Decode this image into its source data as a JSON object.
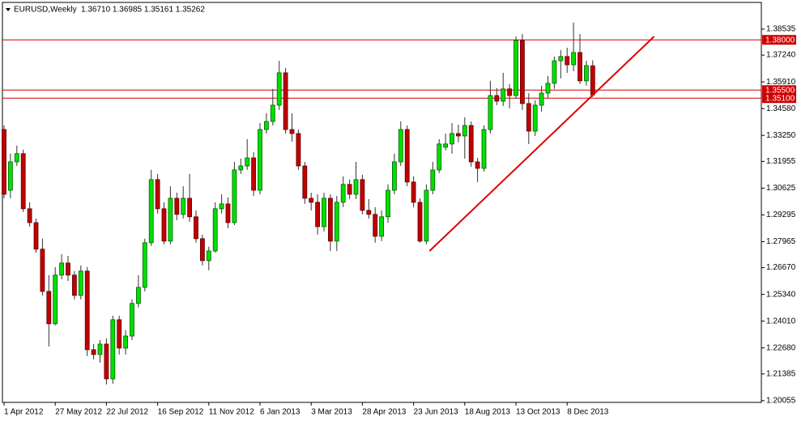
{
  "chart_data": {
    "type": "candlestick",
    "title": "EURUSD,Weekly",
    "subtitle": "1.36710 1.36985 1.35161 1.35262",
    "categories": [
      "1 Apr 2012",
      null,
      null,
      null,
      null,
      null,
      null,
      null,
      "27 May 2012",
      null,
      null,
      null,
      null,
      null,
      null,
      null,
      "22 Jul 2012",
      null,
      null,
      null,
      null,
      null,
      null,
      null,
      "16 Sep 2012",
      null,
      null,
      null,
      null,
      null,
      null,
      null,
      "11 Nov 2012",
      null,
      null,
      null,
      null,
      null,
      null,
      null,
      "6 Jan 2013",
      null,
      null,
      null,
      null,
      null,
      null,
      null,
      "3 Mar 2013",
      null,
      null,
      null,
      null,
      null,
      null,
      null,
      "28 Apr 2013",
      null,
      null,
      null,
      null,
      null,
      null,
      null,
      "23 Jun 2013",
      null,
      null,
      null,
      null,
      null,
      null,
      null,
      "18 Aug 2013",
      null,
      null,
      null,
      null,
      null,
      null,
      null,
      "13 Oct 2013",
      null,
      null,
      null,
      null,
      null,
      null,
      null,
      "8 Dec 2013",
      null,
      null,
      null,
      null
    ],
    "open": [
      1.3354,
      1.3052,
      1.3193,
      1.3234,
      1.296,
      1.2891,
      1.2759,
      1.2549,
      1.2388,
      1.263,
      1.269,
      1.263,
      1.2529,
      1.265,
      1.2259,
      1.2235,
      1.2287,
      1.2114,
      1.2408,
      1.2267,
      1.2327,
      1.2489,
      1.2569,
      1.2791,
      1.3105,
      1.296,
      1.2799,
      1.3012,
      1.2932,
      1.3012,
      1.292,
      1.2811,
      1.2702,
      1.275,
      1.296,
      1.2984,
      1.2891,
      1.3153,
      1.3173,
      1.3213,
      1.3052,
      1.3354,
      1.3394,
      1.3475,
      1.3636,
      1.3354,
      1.3334,
      1.3173,
      1.3012,
      1.2992,
      1.2871,
      1.3012,
      1.2799,
      1.2992,
      1.3081,
      1.3032,
      1.3105,
      1.2952,
      1.2932,
      1.2823,
      1.292,
      1.3052,
      1.3193,
      1.3354,
      1.3093,
      1.2992,
      1.2799,
      1.3052,
      1.3153,
      1.3266,
      1.3282,
      1.3334,
      1.3322,
      1.3374,
      1.3193,
      1.3161,
      1.3354,
      1.3523,
      1.3495,
      1.3556,
      1.3523,
      1.3797,
      1.3483,
      1.3346,
      1.3475,
      1.3535,
      1.3584,
      1.3696,
      1.3717,
      1.3676,
      1.3737,
      1.3596,
      1.3671
    ],
    "high": [
      1.3374,
      1.3234,
      1.3274,
      1.3254,
      1.2992,
      1.2911,
      1.2811,
      1.263,
      1.267,
      1.2734,
      1.2726,
      1.265,
      1.2678,
      1.267,
      1.2287,
      1.2307,
      1.2315,
      1.2428,
      1.2428,
      1.2356,
      1.2509,
      1.263,
      1.2811,
      1.3153,
      1.3133,
      1.2992,
      1.3072,
      1.304,
      1.3072,
      1.3133,
      1.2952,
      1.2831,
      1.2771,
      1.2992,
      1.3032,
      1.3016,
      1.3193,
      1.3209,
      1.3306,
      1.3242,
      1.3386,
      1.3435,
      1.3556,
      1.3696,
      1.366,
      1.3435,
      1.3354,
      1.3193,
      1.304,
      1.3032,
      1.304,
      1.3032,
      1.3024,
      1.3121,
      1.3105,
      1.3193,
      1.3129,
      1.3008,
      1.2968,
      1.2952,
      1.3081,
      1.3234,
      1.3394,
      1.3374,
      1.3121,
      1.3012,
      1.3081,
      1.3193,
      1.3306,
      1.3334,
      1.3386,
      1.3378,
      1.3415,
      1.3394,
      1.3213,
      1.3374,
      1.3596,
      1.356,
      1.3636,
      1.358,
      1.3817,
      1.3829,
      1.3535,
      1.3499,
      1.3572,
      1.362,
      1.3717,
      1.3749,
      1.3761,
      1.3886,
      1.3829,
      1.3696,
      1.36985
    ],
    "low": [
      1.3012,
      1.3012,
      1.3173,
      1.2944,
      1.2871,
      1.2742,
      1.2529,
      1.2275,
      1.238,
      1.2609,
      1.2601,
      1.2509,
      1.2509,
      1.2227,
      1.2211,
      1.2195,
      1.2086,
      1.209,
      1.2235,
      1.2235,
      1.2307,
      1.2469,
      1.2549,
      1.2775,
      1.2936,
      1.2783,
      1.2783,
      1.2903,
      1.2911,
      1.2895,
      1.2791,
      1.2678,
      1.2654,
      1.2742,
      1.2936,
      1.2863,
      1.2879,
      1.3133,
      1.3153,
      1.3024,
      1.3032,
      1.3334,
      1.3374,
      1.3451,
      1.3334,
      1.3294,
      1.3153,
      1.2984,
      1.2952,
      1.2831,
      1.2847,
      1.275,
      1.275,
      1.2968,
      1.3008,
      1.3008,
      1.2932,
      1.2911,
      1.2791,
      1.2799,
      1.2891,
      1.3032,
      1.3173,
      1.3072,
      1.2968,
      1.2791,
      1.2783,
      1.3032,
      1.3137,
      1.325,
      1.3234,
      1.329,
      1.3209,
      1.3169,
      1.3093,
      1.3145,
      1.3334,
      1.3475,
      1.3471,
      1.3459,
      1.3507,
      1.3451,
      1.3282,
      1.3322,
      1.3443,
      1.3511,
      1.3556,
      1.3608,
      1.3636,
      1.3644,
      1.358,
      1.3572,
      1.35161
    ],
    "close": [
      1.3032,
      1.3193,
      1.3234,
      1.296,
      1.2891,
      1.2759,
      1.2549,
      1.2388,
      1.263,
      1.269,
      1.263,
      1.2529,
      1.265,
      1.2259,
      1.2235,
      1.2287,
      1.2114,
      1.2408,
      1.2267,
      1.2327,
      1.2489,
      1.2569,
      1.2791,
      1.3105,
      1.296,
      1.2799,
      1.3012,
      1.2932,
      1.3012,
      1.292,
      1.2811,
      1.2702,
      1.275,
      1.296,
      1.2984,
      1.2891,
      1.3153,
      1.3173,
      1.3213,
      1.3052,
      1.3354,
      1.3394,
      1.3475,
      1.3636,
      1.3354,
      1.3334,
      1.3173,
      1.3012,
      1.2992,
      1.2871,
      1.3012,
      1.2799,
      1.2992,
      1.3081,
      1.3032,
      1.3105,
      1.2952,
      1.2932,
      1.2823,
      1.292,
      1.3052,
      1.3193,
      1.3354,
      1.3093,
      1.2992,
      1.2799,
      1.3052,
      1.3153,
      1.3282,
      1.3282,
      1.3334,
      1.3322,
      1.3374,
      1.3193,
      1.3161,
      1.3354,
      1.3523,
      1.3495,
      1.3556,
      1.3523,
      1.3797,
      1.3483,
      1.3346,
      1.3475,
      1.3535,
      1.3584,
      1.3696,
      1.3717,
      1.3676,
      1.3737,
      1.3596,
      1.3672,
      1.35262
    ],
    "up_color": "#00e000",
    "down_color": "#c00000",
    "ylim": [
      1.1997,
      1.3978
    ],
    "yticks": [
      1.38535,
      {
        "value": 1.3724,
        "label": "1.37240"
      },
      {
        "value": 1.3591,
        "label": "1.35910"
      },
      {
        "value": 1.3458,
        "label": "1.34580"
      },
      {
        "value": 1.3325,
        "label": "1.33250"
      },
      1.31955,
      1.30625,
      1.29295,
      1.27965,
      {
        "value": 1.2667,
        "label": "1.26670"
      },
      {
        "value": 1.2534,
        "label": "1.25340"
      },
      {
        "value": 1.2401,
        "label": "1.24010"
      },
      {
        "value": 1.2268,
        "label": "1.22680"
      },
      1.21385,
      1.20055
    ],
    "hlines": [
      {
        "value": 1.38,
        "label": "1.38000"
      },
      {
        "value": 1.355,
        "label": "1.35500"
      },
      {
        "value": 1.351,
        "label": "1.35100"
      }
    ],
    "hline_color": "#d00000",
    "trendline": {
      "x": [
        66.5,
        101.6
      ],
      "values": [
        1.275,
        1.3817
      ],
      "color": "#e00000"
    }
  }
}
